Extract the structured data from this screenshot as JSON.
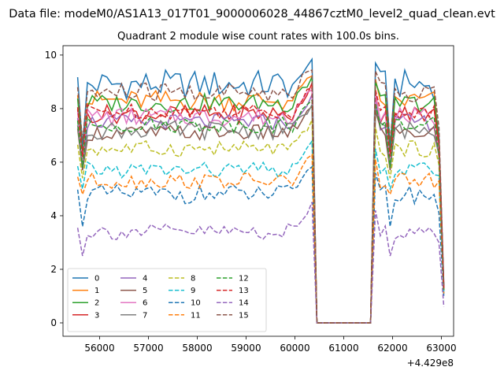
{
  "figure": {
    "suptitle": "Data file: modeM0/AS1A13_017T01_9000006028_44867cztM0_level2_quad_clean.evt",
    "offset_label": "+4.429e8"
  },
  "chart_data": {
    "type": "line",
    "title": "Quadrant 2 module wise count rates with 100.0s bins.",
    "xlabel": "",
    "ylabel": "",
    "x_offset": 442900000,
    "xlim": [
      55250,
      63250
    ],
    "ylim": [
      -0.5,
      10.35
    ],
    "x_ticks": [
      56000,
      57000,
      58000,
      59000,
      60000,
      61000,
      62000,
      63000
    ],
    "y_ticks": [
      0,
      2,
      4,
      6,
      8,
      10
    ],
    "grid": false,
    "legend": {
      "position": "lower-left",
      "columns": 5
    },
    "x": [
      55550,
      55650,
      55750,
      55850,
      55950,
      56050,
      56150,
      56250,
      56350,
      56450,
      56550,
      56650,
      56750,
      56850,
      56950,
      57050,
      57150,
      57250,
      57350,
      57450,
      57550,
      57650,
      57750,
      57850,
      57950,
      58050,
      58150,
      58250,
      58350,
      58450,
      58550,
      58650,
      58750,
      58850,
      58950,
      59050,
      59150,
      59250,
      59350,
      59450,
      59550,
      59650,
      59750,
      59850,
      59950,
      60050,
      60150,
      60250,
      60350,
      60450,
      60550,
      60650,
      60750,
      60850,
      60950,
      61050,
      61150,
      61250,
      61350,
      61450,
      61550,
      61650,
      61750,
      61850,
      61950,
      62050,
      62150,
      62250,
      62350,
      62450,
      62550,
      62650,
      62750,
      62850,
      62950,
      63050
    ],
    "series": [
      {
        "name": "0",
        "color": "#1f77b4",
        "dash": "solid",
        "level": 8.9,
        "amp": 0.55,
        "dip": 6.5,
        "endval": 1.4
      },
      {
        "name": "1",
        "color": "#ff7f0e",
        "dash": "solid",
        "level": 8.3,
        "amp": 0.4,
        "dip": 6.2,
        "endval": 1.3
      },
      {
        "name": "2",
        "color": "#2ca02c",
        "dash": "solid",
        "level": 8.2,
        "amp": 0.35,
        "dip": 6.3,
        "endval": 1.3
      },
      {
        "name": "3",
        "color": "#d62728",
        "dash": "solid",
        "level": 7.8,
        "amp": 0.35,
        "dip": 6.1,
        "endval": 1.3
      },
      {
        "name": "4",
        "color": "#9467bd",
        "dash": "solid",
        "level": 7.5,
        "amp": 0.3,
        "dip": 5.9,
        "endval": 1.2
      },
      {
        "name": "5",
        "color": "#8c564b",
        "dash": "solid",
        "level": 7.1,
        "amp": 0.3,
        "dip": 5.7,
        "endval": 1.2
      },
      {
        "name": "6",
        "color": "#e377c2",
        "dash": "solid",
        "level": 7.7,
        "amp": 0.35,
        "dip": 6.0,
        "endval": 1.3
      },
      {
        "name": "7",
        "color": "#7f7f7f",
        "dash": "solid",
        "level": 7.2,
        "amp": 0.35,
        "dip": 5.8,
        "endval": 1.2
      },
      {
        "name": "8",
        "color": "#bcbd22",
        "dash": "dashed",
        "level": 6.5,
        "amp": 0.3,
        "dip": 5.4,
        "endval": 1.2
      },
      {
        "name": "9",
        "color": "#17becf",
        "dash": "dashed",
        "level": 5.7,
        "amp": 0.3,
        "dip": 5.0,
        "endval": 1.1
      },
      {
        "name": "10",
        "color": "#1f77b4",
        "dash": "dashed",
        "level": 4.8,
        "amp": 0.35,
        "dip": 3.6,
        "endval": 1.0
      },
      {
        "name": "11",
        "color": "#ff7f0e",
        "dash": "dashed",
        "level": 5.3,
        "amp": 0.3,
        "dip": 4.8,
        "endval": 1.1
      },
      {
        "name": "12",
        "color": "#2ca02c",
        "dash": "dashed",
        "level": 7.4,
        "amp": 0.3,
        "dip": 5.8,
        "endval": 1.2
      },
      {
        "name": "13",
        "color": "#d62728",
        "dash": "dashed",
        "level": 7.9,
        "amp": 0.3,
        "dip": 6.2,
        "endval": 1.3
      },
      {
        "name": "14",
        "color": "#9467bd",
        "dash": "dashed",
        "level": 3.4,
        "amp": 0.3,
        "dip": 2.5,
        "endval": 0.6
      },
      {
        "name": "15",
        "color": "#8c564b",
        "dash": "dashed",
        "level": 8.6,
        "amp": 0.4,
        "dip": 6.8,
        "endval": 1.4
      }
    ]
  }
}
